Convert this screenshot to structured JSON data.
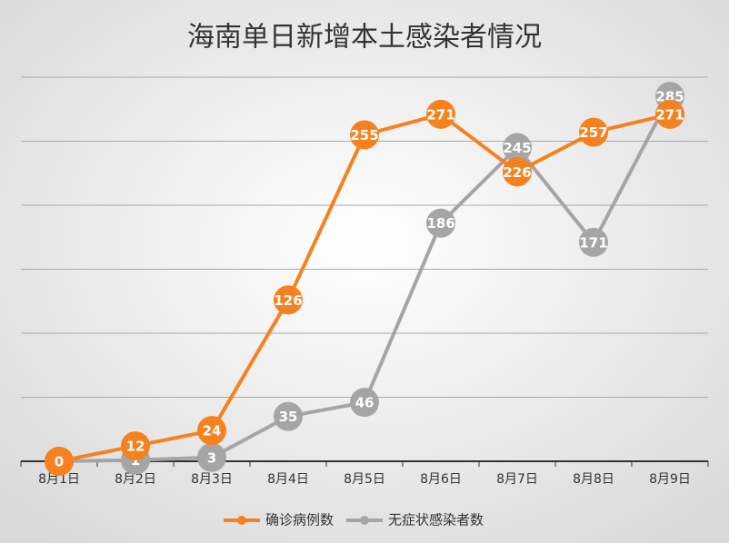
{
  "chart_data": {
    "type": "line",
    "title": "海南单日新增本土感染者情况",
    "categories": [
      "8月1日",
      "8月2日",
      "8月3日",
      "8月4日",
      "8月5日",
      "8月6日",
      "8月7日",
      "8月8日",
      "8月9日"
    ],
    "series": [
      {
        "name": "确诊病例数",
        "color": "#f5821f",
        "values": [
          0,
          12,
          24,
          126,
          255,
          271,
          226,
          257,
          271
        ]
      },
      {
        "name": "无症状感染者数",
        "color": "#a5a5a5",
        "values": [
          0,
          1,
          3,
          35,
          46,
          186,
          245,
          171,
          285
        ]
      }
    ],
    "ylim": [
      0,
      300
    ],
    "yticks": [
      0,
      50,
      100,
      150,
      200,
      250,
      300
    ],
    "grid": true,
    "legend": "bottom"
  }
}
